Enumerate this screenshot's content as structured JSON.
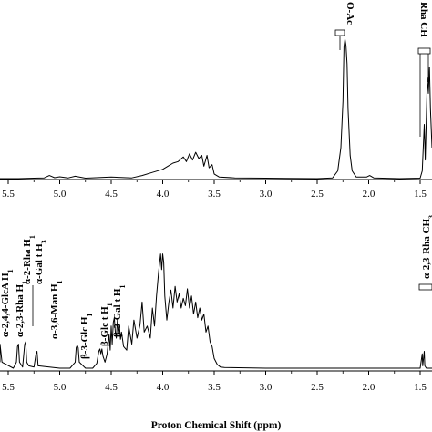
{
  "chart_data": [
    {
      "type": "line",
      "title": "",
      "xlabel": "",
      "ylabel": "",
      "x_reversed": true,
      "xlim": [
        5.6,
        1.35
      ],
      "ticks": [
        "5.5",
        "5.0",
        "4.5",
        "4.0",
        "3.5",
        "3.0",
        "2.5",
        "2.0",
        "1.5"
      ],
      "tick_values": [
        5.5,
        5.0,
        4.5,
        4.0,
        3.5,
        3.0,
        2.5,
        2.0,
        1.5
      ],
      "annotations": [
        {
          "text": "O-Ac",
          "x": 2.22
        },
        {
          "text": "Rha CH",
          "x": 1.45
        }
      ],
      "series": [
        {
          "points": [
            [
              5.6,
              0.0
            ],
            [
              5.4,
              0.0
            ],
            [
              5.25,
              0.003
            ],
            [
              5.15,
              0.005
            ],
            [
              5.1,
              0.02
            ],
            [
              5.05,
              0.006
            ],
            [
              5.0,
              0.012
            ],
            [
              4.92,
              0.004
            ],
            [
              4.85,
              0.015
            ],
            [
              4.75,
              0.003
            ],
            [
              4.5,
              0.01
            ],
            [
              4.3,
              0.005
            ],
            [
              4.2,
              0.02
            ],
            [
              4.1,
              0.04
            ],
            [
              4.0,
              0.06
            ],
            [
              3.95,
              0.08
            ],
            [
              3.9,
              0.1
            ],
            [
              3.85,
              0.11
            ],
            [
              3.8,
              0.14
            ],
            [
              3.77,
              0.11
            ],
            [
              3.74,
              0.16
            ],
            [
              3.71,
              0.12
            ],
            [
              3.68,
              0.17
            ],
            [
              3.65,
              0.13
            ],
            [
              3.62,
              0.15
            ],
            [
              3.6,
              0.08
            ],
            [
              3.57,
              0.15
            ],
            [
              3.55,
              0.07
            ],
            [
              3.52,
              0.09
            ],
            [
              3.5,
              0.03
            ],
            [
              3.45,
              0.01
            ],
            [
              3.3,
              0.005
            ],
            [
              3.0,
              0.003
            ],
            [
              2.8,
              0.002
            ],
            [
              2.5,
              0.0
            ],
            [
              2.35,
              0.005
            ],
            [
              2.3,
              0.05
            ],
            [
              2.27,
              0.2
            ],
            [
              2.25,
              0.5
            ],
            [
              2.24,
              0.85
            ],
            [
              2.23,
              0.9
            ],
            [
              2.22,
              0.86
            ],
            [
              2.21,
              0.74
            ],
            [
              2.2,
              0.45
            ],
            [
              2.18,
              0.15
            ],
            [
              2.16,
              0.05
            ],
            [
              2.12,
              0.01
            ],
            [
              2.02,
              0.01
            ],
            [
              1.99,
              0.02
            ],
            [
              1.95,
              0.005
            ],
            [
              1.7,
              0.0
            ],
            [
              1.5,
              0.003
            ],
            [
              1.48,
              0.05
            ],
            [
              1.47,
              0.2
            ],
            [
              1.46,
              0.35
            ],
            [
              1.45,
              0.12
            ],
            [
              1.44,
              0.4
            ],
            [
              1.43,
              0.65
            ],
            [
              1.42,
              0.55
            ],
            [
              1.41,
              0.72
            ],
            [
              1.4,
              0.45
            ],
            [
              1.38,
              0.2
            ]
          ]
        }
      ]
    },
    {
      "type": "line",
      "title": "",
      "xlabel": "Proton Chemical Shift (ppm)",
      "ylabel": "",
      "x_reversed": true,
      "xlim": [
        5.6,
        1.35
      ],
      "ticks": [
        "5.5",
        "5.0",
        "4.5",
        "4.0",
        "3.5",
        "3.0",
        "2.5",
        "2.0",
        "1.5"
      ],
      "tick_values": [
        5.5,
        5.0,
        4.5,
        4.0,
        3.5,
        3.0,
        2.5,
        2.0,
        1.5
      ],
      "annotations": [
        {
          "text": "α-2,4,4-GlcA H",
          "x": 5.58
        },
        {
          "text": "α-2,3-Rha H",
          "x": 5.4
        },
        {
          "text": "α-2-Rha H",
          "x": 5.34
        },
        {
          "text": "α-Gal t H",
          "x": 5.3
        },
        {
          "text": "α-3,6-Man H",
          "x": 5.22
        },
        {
          "text": "β-3-Glc H",
          "x": 4.83
        },
        {
          "text": "β-Glc t H",
          "x": 4.6
        },
        {
          "text": "β-3-Gal t H",
          "x": 4.47
        },
        {
          "text": "α-2,3-Rha CH",
          "x": 1.46
        }
      ],
      "series": [
        {
          "points": [
            [
              5.6,
              0.05
            ],
            [
              5.58,
              0.2
            ],
            [
              5.56,
              0.05
            ],
            [
              5.45,
              0.0
            ],
            [
              5.42,
              0.05
            ],
            [
              5.41,
              0.18
            ],
            [
              5.4,
              0.2
            ],
            [
              5.39,
              0.05
            ],
            [
              5.36,
              0.01
            ],
            [
              5.34,
              0.2
            ],
            [
              5.33,
              0.22
            ],
            [
              5.32,
              0.05
            ],
            [
              5.3,
              0.02
            ],
            [
              5.25,
              0.01
            ],
            [
              5.23,
              0.12
            ],
            [
              5.22,
              0.14
            ],
            [
              5.21,
              0.02
            ],
            [
              5.0,
              0.0
            ],
            [
              4.9,
              0.0
            ],
            [
              4.85,
              0.05
            ],
            [
              4.84,
              0.17
            ],
            [
              4.83,
              0.19
            ],
            [
              4.82,
              0.17
            ],
            [
              4.81,
              0.05
            ],
            [
              4.75,
              0.0
            ],
            [
              4.68,
              0.0
            ],
            [
              4.64,
              0.04
            ],
            [
              4.62,
              0.14
            ],
            [
              4.61,
              0.16
            ],
            [
              4.6,
              0.12
            ],
            [
              4.59,
              0.16
            ],
            [
              4.58,
              0.1
            ],
            [
              4.56,
              0.05
            ],
            [
              4.54,
              0.12
            ],
            [
              4.52,
              0.28
            ],
            [
              4.51,
              0.15
            ],
            [
              4.5,
              0.35
            ],
            [
              4.49,
              0.2
            ],
            [
              4.48,
              0.38
            ],
            [
              4.47,
              0.42
            ],
            [
              4.46,
              0.3
            ],
            [
              4.45,
              0.25
            ],
            [
              4.44,
              0.4
            ],
            [
              4.43,
              0.28
            ],
            [
              4.42,
              0.36
            ],
            [
              4.41,
              0.24
            ],
            [
              4.4,
              0.3
            ],
            [
              4.38,
              0.18
            ],
            [
              4.35,
              0.15
            ],
            [
              4.33,
              0.35
            ],
            [
              4.3,
              0.2
            ],
            [
              4.28,
              0.4
            ],
            [
              4.25,
              0.25
            ],
            [
              4.22,
              0.36
            ],
            [
              4.2,
              0.55
            ],
            [
              4.18,
              0.3
            ],
            [
              4.15,
              0.35
            ],
            [
              4.12,
              0.25
            ],
            [
              4.1,
              0.5
            ],
            [
              4.08,
              0.35
            ],
            [
              4.06,
              0.6
            ],
            [
              4.04,
              0.8
            ],
            [
              4.02,
              0.95
            ],
            [
              4.01,
              0.82
            ],
            [
              4.0,
              0.95
            ],
            [
              3.99,
              0.88
            ],
            [
              3.98,
              0.6
            ],
            [
              3.96,
              0.4
            ],
            [
              3.94,
              0.55
            ],
            [
              3.92,
              0.65
            ],
            [
              3.9,
              0.5
            ],
            [
              3.88,
              0.68
            ],
            [
              3.86,
              0.55
            ],
            [
              3.84,
              0.62
            ],
            [
              3.82,
              0.5
            ],
            [
              3.8,
              0.58
            ],
            [
              3.78,
              0.52
            ],
            [
              3.76,
              0.66
            ],
            [
              3.74,
              0.5
            ],
            [
              3.72,
              0.6
            ],
            [
              3.7,
              0.45
            ],
            [
              3.68,
              0.55
            ],
            [
              3.66,
              0.42
            ],
            [
              3.64,
              0.5
            ],
            [
              3.62,
              0.4
            ],
            [
              3.6,
              0.45
            ],
            [
              3.58,
              0.3
            ],
            [
              3.56,
              0.35
            ],
            [
              3.54,
              0.22
            ],
            [
              3.52,
              0.18
            ],
            [
              3.5,
              0.08
            ],
            [
              3.47,
              0.03
            ],
            [
              3.44,
              0.01
            ],
            [
              3.4,
              0.005
            ],
            [
              3.0,
              0.0
            ],
            [
              2.5,
              0.0
            ],
            [
              2.0,
              0.0
            ],
            [
              1.6,
              0.0
            ],
            [
              1.5,
              0.0
            ],
            [
              1.48,
              0.12
            ],
            [
              1.475,
              0.02
            ],
            [
              1.46,
              0.14
            ],
            [
              1.455,
              0.02
            ],
            [
              1.44,
              0.0
            ],
            [
              1.38,
              0.0
            ]
          ]
        }
      ]
    }
  ]
}
